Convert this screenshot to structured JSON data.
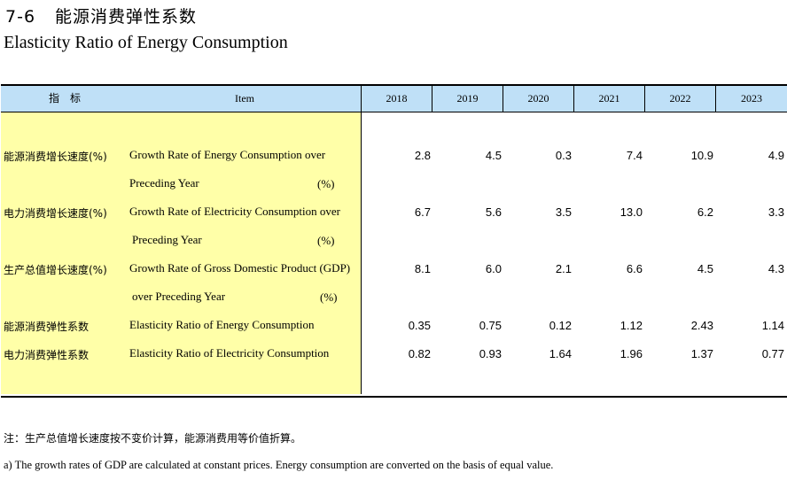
{
  "title": {
    "number": "7-6",
    "cn": "能源消费弹性系数",
    "en": "Elasticity Ratio of Energy Consumption"
  },
  "header": {
    "indicator_cn": "指　标",
    "item_en": "Item",
    "years": [
      "2018",
      "2019",
      "2020",
      "2021",
      "2022",
      "2023"
    ]
  },
  "rows": [
    {
      "cn": "能源消费增长速度(%)",
      "en1": "Growth Rate of Energy Consumption over",
      "en2": "Preceding Year",
      "unit": "(%)",
      "values": [
        "2.8",
        "4.5",
        "0.3",
        "7.4",
        "10.9",
        "4.9"
      ]
    },
    {
      "cn": "电力消费增长速度(%)",
      "en1": "Growth Rate of Electricity Consumption over",
      "en2": "Preceding Year",
      "unit": "(%)",
      "values": [
        "6.7",
        "5.6",
        "3.5",
        "13.0",
        "6.2",
        "3.3"
      ]
    },
    {
      "cn": "生产总值增长速度(%)",
      "en1": "Growth Rate of Gross Domestic Product (GDP)",
      "en2": "over Preceding Year",
      "unit": "(%)",
      "values": [
        "8.1",
        "6.0",
        "2.1",
        "6.6",
        "4.5",
        "4.3"
      ]
    },
    {
      "cn": "能源消费弹性系数",
      "en1": "Elasticity Ratio of Energy Consumption",
      "values": [
        "0.35",
        "0.75",
        "0.12",
        "1.12",
        "2.43",
        "1.14"
      ]
    },
    {
      "cn": "电力消费弹性系数",
      "en1": "Elasticity Ratio of Electricity Consumption",
      "values": [
        "0.82",
        "0.93",
        "1.64",
        "1.96",
        "1.37",
        "0.77"
      ]
    }
  ],
  "notes": {
    "cn": "注：生产总值增长速度按不变价计算，能源消费用等价值折算。",
    "en": "a) The growth rates of GDP are calculated at constant prices. Energy consumption are converted on the basis of equal value."
  }
}
